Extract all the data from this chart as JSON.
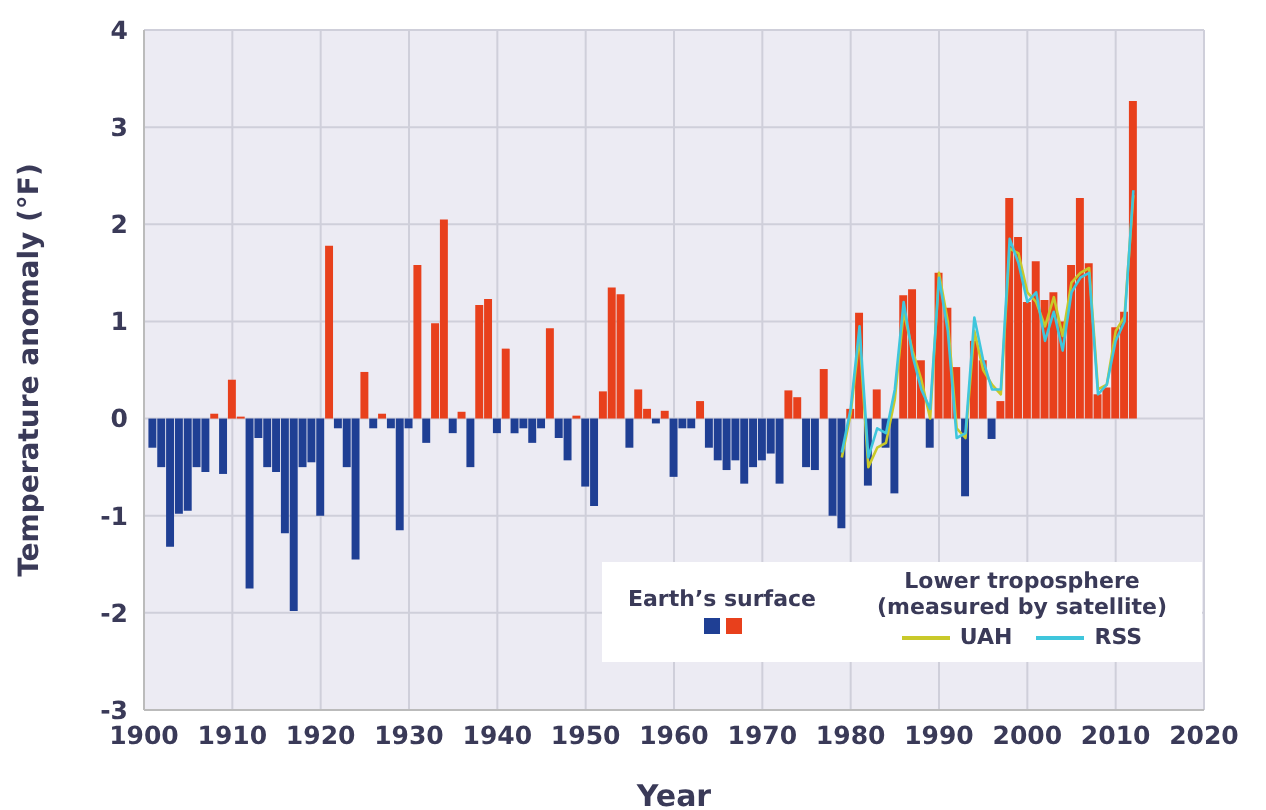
{
  "chart_data": {
    "type": "bar",
    "xlabel": "Year",
    "ylabel": "Temperature anomaly (°F)",
    "legend_title": "Lower troposphere (measured by satellite)",
    "xlim": [
      1900,
      2020
    ],
    "xticks": [
      1900,
      1910,
      1920,
      1930,
      1940,
      1950,
      1960,
      1970,
      1980,
      1990,
      2000,
      2010,
      2020
    ],
    "ylim": [
      -3,
      4
    ],
    "yticks": [
      -3,
      -2,
      -1,
      0,
      1,
      2,
      3,
      4
    ],
    "grid": true,
    "legend": "bottom right",
    "series": [
      {
        "name": "Earth’s surface",
        "x": [
          1901,
          1902,
          1903,
          1904,
          1905,
          1906,
          1907,
          1908,
          1909,
          1910,
          1911,
          1912,
          1913,
          1914,
          1915,
          1916,
          1917,
          1918,
          1919,
          1920,
          1921,
          1922,
          1923,
          1924,
          1925,
          1926,
          1927,
          1928,
          1929,
          1930,
          1931,
          1932,
          1933,
          1934,
          1935,
          1936,
          1937,
          1938,
          1939,
          1940,
          1941,
          1942,
          1943,
          1944,
          1945,
          1946,
          1947,
          1948,
          1949,
          1950,
          1951,
          1952,
          1953,
          1954,
          1955,
          1956,
          1957,
          1958,
          1959,
          1960,
          1961,
          1962,
          1963,
          1964,
          1965,
          1966,
          1967,
          1968,
          1969,
          1970,
          1971,
          1972,
          1973,
          1974,
          1975,
          1976,
          1977,
          1978,
          1979,
          1980,
          1981,
          1982,
          1983,
          1984,
          1985,
          1986,
          1987,
          1988,
          1989,
          1990,
          1991,
          1992,
          1993,
          1994,
          1995,
          1996,
          1997,
          1998,
          1999,
          2000,
          2001,
          2002,
          2003,
          2004,
          2005,
          2006,
          2007,
          2008,
          2009,
          2010,
          2011,
          2012
        ],
        "values": [
          -0.3,
          -0.5,
          -1.32,
          -0.98,
          -0.95,
          -0.5,
          -0.55,
          0.05,
          -0.57,
          0.4,
          0.02,
          -1.75,
          -0.2,
          -0.5,
          -0.55,
          -1.18,
          -1.98,
          -0.5,
          -0.45,
          -1.0,
          1.78,
          -0.1,
          -0.5,
          -1.45,
          0.48,
          -0.1,
          0.05,
          -0.1,
          -1.15,
          -0.1,
          1.58,
          -0.25,
          0.98,
          2.05,
          -0.15,
          0.07,
          -0.5,
          1.17,
          1.23,
          -0.15,
          0.72,
          -0.15,
          -0.1,
          -0.25,
          -0.1,
          0.93,
          -0.2,
          -0.43,
          0.03,
          -0.7,
          -0.9,
          0.28,
          1.35,
          1.28,
          -0.3,
          0.3,
          0.1,
          -0.05,
          0.08,
          -0.6,
          -0.1,
          -0.1,
          0.18,
          -0.3,
          -0.43,
          -0.53,
          -0.43,
          -0.67,
          -0.5,
          -0.43,
          -0.36,
          -0.67,
          0.29,
          0.22,
          -0.5,
          -0.53,
          0.51,
          -1.0,
          -1.13,
          0.1,
          1.09,
          -0.69,
          0.3,
          -0.3,
          -0.77,
          1.27,
          1.33,
          0.6,
          -0.3,
          1.5,
          1.14,
          0.53,
          -0.8,
          0.8,
          0.6,
          -0.21,
          0.18,
          2.27,
          1.87,
          1.2,
          1.62,
          1.22,
          1.3,
          1.0,
          1.58,
          2.27,
          1.6,
          0.25,
          0.32,
          0.94,
          1.1,
          3.27
        ],
        "colors": [
          "#1f3f94",
          "#1f3f94",
          "#1f3f94",
          "#1f3f94",
          "#1f3f94",
          "#1f3f94",
          "#1f3f94",
          "#e8401c",
          "#1f3f94",
          "#e8401c",
          "#e8401c",
          "#1f3f94",
          "#1f3f94",
          "#1f3f94",
          "#1f3f94",
          "#1f3f94",
          "#1f3f94",
          "#1f3f94",
          "#1f3f94",
          "#1f3f94",
          "#e8401c",
          "#1f3f94",
          "#1f3f94",
          "#1f3f94",
          "#e8401c",
          "#1f3f94",
          "#e8401c",
          "#1f3f94",
          "#1f3f94",
          "#1f3f94",
          "#e8401c",
          "#1f3f94",
          "#e8401c",
          "#e8401c",
          "#1f3f94",
          "#e8401c",
          "#1f3f94",
          "#e8401c",
          "#e8401c",
          "#1f3f94",
          "#e8401c",
          "#1f3f94",
          "#1f3f94",
          "#1f3f94",
          "#1f3f94",
          "#e8401c",
          "#1f3f94",
          "#1f3f94",
          "#e8401c",
          "#1f3f94",
          "#1f3f94",
          "#e8401c",
          "#e8401c",
          "#e8401c",
          "#1f3f94",
          "#e8401c",
          "#e8401c",
          "#1f3f94",
          "#e8401c",
          "#1f3f94",
          "#1f3f94",
          "#1f3f94",
          "#e8401c",
          "#1f3f94",
          "#1f3f94",
          "#1f3f94",
          "#1f3f94",
          "#1f3f94",
          "#1f3f94",
          "#1f3f94",
          "#1f3f94",
          "#1f3f94",
          "#e8401c",
          "#e8401c",
          "#1f3f94",
          "#1f3f94",
          "#e8401c",
          "#1f3f94",
          "#1f3f94",
          "#e8401c",
          "#e8401c",
          "#1f3f94",
          "#e8401c",
          "#1f3f94",
          "#1f3f94",
          "#e8401c",
          "#e8401c",
          "#e8401c",
          "#1f3f94",
          "#e8401c",
          "#e8401c",
          "#e8401c",
          "#1f3f94",
          "#e8401c",
          "#e8401c",
          "#1f3f94",
          "#e8401c",
          "#e8401c",
          "#e8401c",
          "#e8401c",
          "#e8401c",
          "#e8401c",
          "#e8401c",
          "#e8401c",
          "#e8401c",
          "#e8401c",
          "#e8401c",
          "#e8401c",
          "#e8401c",
          "#e8401c",
          "#e8401c",
          "#e8401c"
        ]
      },
      {
        "name": "UAH",
        "type": "line",
        "color": "#c9c92a",
        "x": [
          1979,
          1980,
          1981,
          1982,
          1983,
          1984,
          1985,
          1986,
          1987,
          1988,
          1989,
          1990,
          1991,
          1992,
          1993,
          1994,
          1995,
          1996,
          1997,
          1998,
          1999,
          2000,
          2001,
          2002,
          2003,
          2004,
          2005,
          2006,
          2007,
          2008,
          2009,
          2010,
          2011,
          2012
        ],
        "values": [
          -0.4,
          0.05,
          0.85,
          -0.5,
          -0.3,
          -0.25,
          0.2,
          1.1,
          0.7,
          0.4,
          0.0,
          1.5,
          1.0,
          -0.1,
          -0.2,
          0.9,
          0.5,
          0.35,
          0.25,
          1.75,
          1.7,
          1.3,
          1.2,
          0.95,
          1.25,
          0.85,
          1.4,
          1.5,
          1.55,
          0.3,
          0.35,
          0.9,
          1.05,
          2.3
        ]
      },
      {
        "name": "RSS",
        "type": "line",
        "color": "#3fc6dc",
        "x": [
          1979,
          1980,
          1981,
          1982,
          1983,
          1984,
          1985,
          1986,
          1987,
          1988,
          1989,
          1990,
          1991,
          1992,
          1993,
          1994,
          1995,
          1996,
          1997,
          1998,
          1999,
          2000,
          2001,
          2002,
          2003,
          2004,
          2005,
          2006,
          2007,
          2008,
          2009,
          2010,
          2011,
          2012
        ],
        "values": [
          -0.35,
          0.1,
          0.95,
          -0.4,
          -0.1,
          -0.15,
          0.3,
          1.2,
          0.65,
          0.3,
          0.1,
          1.45,
          0.9,
          -0.2,
          -0.15,
          1.04,
          0.6,
          0.3,
          0.3,
          1.85,
          1.6,
          1.2,
          1.3,
          0.8,
          1.1,
          0.7,
          1.3,
          1.45,
          1.5,
          0.25,
          0.35,
          0.8,
          1.0,
          2.35
        ]
      }
    ]
  }
}
